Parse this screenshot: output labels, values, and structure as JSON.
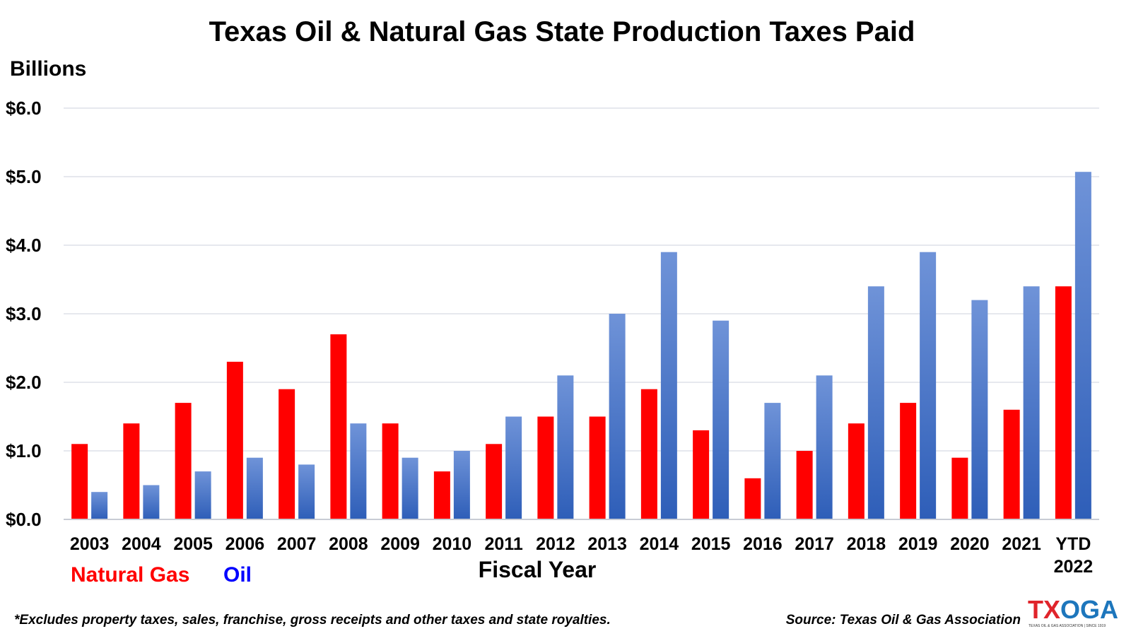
{
  "chart_data": {
    "type": "bar",
    "title": "Texas Oil & Natural Gas State Production Taxes Paid",
    "ylabel": "Billions",
    "xlabel": "Fiscal Year",
    "ylim": [
      0,
      6
    ],
    "yticks": [
      "$0.0",
      "$1.0",
      "$2.0",
      "$3.0",
      "$4.0",
      "$5.0",
      "$6.0"
    ],
    "grid": true,
    "legend_placement": "bottom-left",
    "categories": [
      "2003",
      "2004",
      "2005",
      "2006",
      "2007",
      "2008",
      "2009",
      "2010",
      "2011",
      "2012",
      "2013",
      "2014",
      "2015",
      "2016",
      "2017",
      "2018",
      "2019",
      "2020",
      "2021",
      "YTD 2022"
    ],
    "series": [
      {
        "name": "Natural Gas",
        "color": "#ff0000",
        "values": [
          1.1,
          1.4,
          1.7,
          2.3,
          1.9,
          2.7,
          1.4,
          0.7,
          1.1,
          1.5,
          1.5,
          1.9,
          1.3,
          0.6,
          1.0,
          1.4,
          1.7,
          0.9,
          1.6,
          3.4
        ]
      },
      {
        "name": "Oil",
        "color": "#4472c4",
        "values": [
          0.4,
          0.5,
          0.7,
          0.9,
          0.8,
          1.4,
          0.9,
          1.0,
          1.5,
          2.1,
          3.0,
          3.9,
          2.9,
          1.7,
          2.1,
          3.4,
          3.9,
          3.2,
          3.4,
          5.07
        ]
      }
    ]
  },
  "legend": {
    "gas": "Natural Gas",
    "oil": "Oil"
  },
  "footnote": "*Excludes property taxes, sales, franchise, gross receipts and other taxes and state royalties.",
  "source": "Source: Texas Oil & Gas Association",
  "logo": {
    "part1": "TX",
    "part2": "OGA",
    "tagline": "TEXAS OIL & GAS ASSOCIATION | SINCE 1919"
  },
  "colors": {
    "gas": "#ff0000",
    "oil_top": "#6f93d8",
    "oil_bottom": "#2e5eb8",
    "grid": "#dde1e8",
    "logo_red": "#e0242b",
    "logo_blue": "#1d76bc"
  }
}
